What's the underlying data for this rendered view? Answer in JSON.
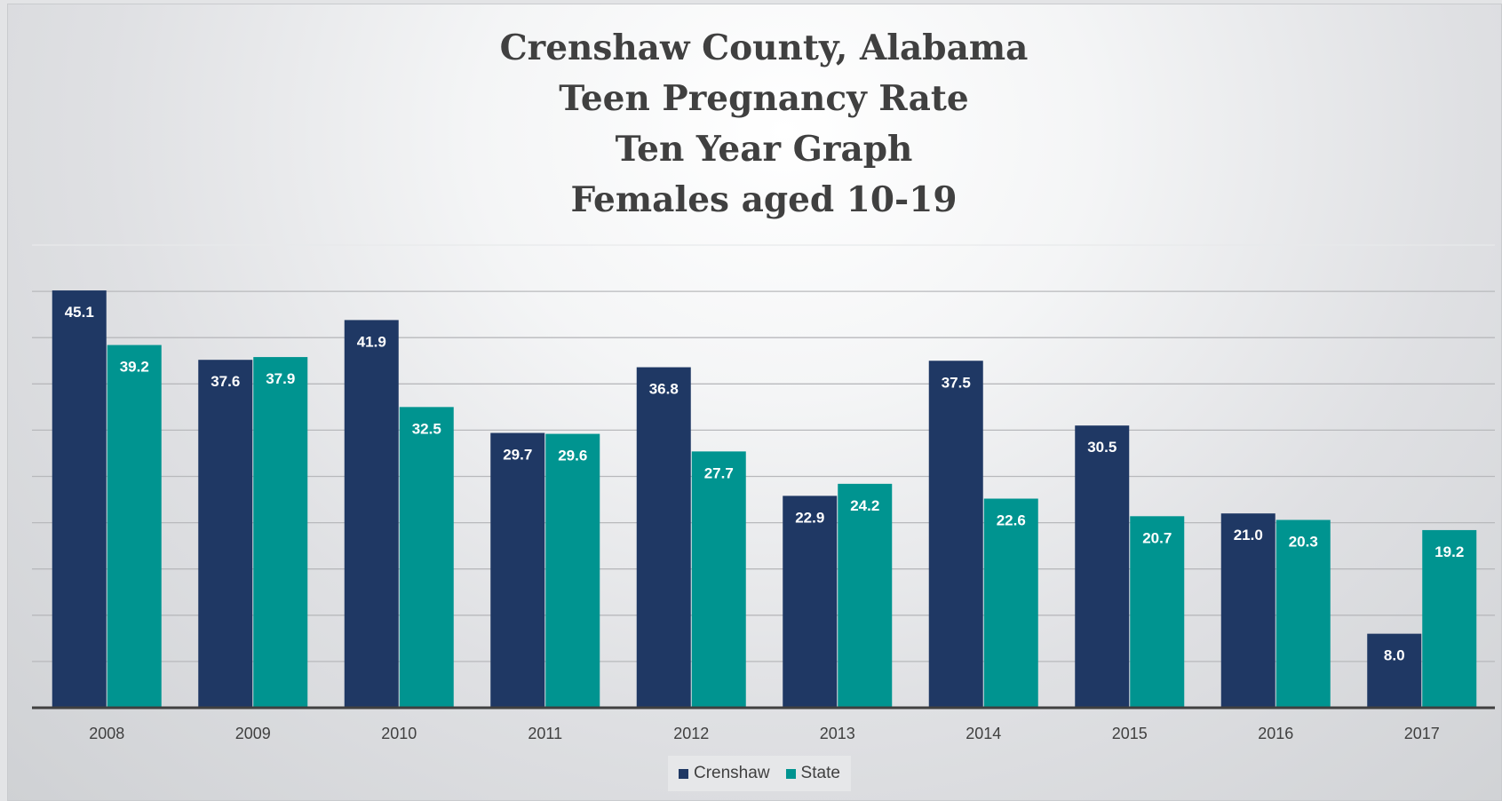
{
  "title_lines": [
    "Crenshaw County, Alabama",
    "Teen Pregnancy Rate",
    "Ten Year Graph",
    "Females aged 10-19"
  ],
  "legend": [
    {
      "name": "Crenshaw",
      "color": "#1f3864"
    },
    {
      "name": "State",
      "color": "#009490"
    }
  ],
  "chart_data": {
    "type": "bar",
    "title": "Crenshaw County, Alabama Teen Pregnancy Rate Ten Year Graph Females aged 10-19",
    "xlabel": "",
    "ylabel": "",
    "categories": [
      "2008",
      "2009",
      "2010",
      "2011",
      "2012",
      "2013",
      "2014",
      "2015",
      "2016",
      "2017"
    ],
    "series": [
      {
        "name": "Crenshaw",
        "color": "#1f3864",
        "values": [
          45.1,
          37.6,
          41.9,
          29.7,
          36.8,
          22.9,
          37.5,
          30.5,
          21.0,
          8.0
        ],
        "labels": [
          "45.1",
          "37.6",
          "41.9",
          "29.7",
          "36.8",
          "22.9",
          "37.5",
          "30.5",
          "21.0",
          "8.0"
        ]
      },
      {
        "name": "State",
        "color": "#009490",
        "values": [
          39.2,
          37.9,
          32.5,
          29.6,
          27.7,
          24.2,
          22.6,
          20.7,
          20.3,
          19.2
        ],
        "labels": [
          "39.2",
          "37.9",
          "32.5",
          "29.6",
          "27.7",
          "24.2",
          "22.6",
          "20.7",
          "20.3",
          "19.2"
        ]
      }
    ],
    "ylim": [
      0,
      50
    ],
    "gridlines": true,
    "legend_position": "bottom-center",
    "data_labels": "inside-end"
  }
}
